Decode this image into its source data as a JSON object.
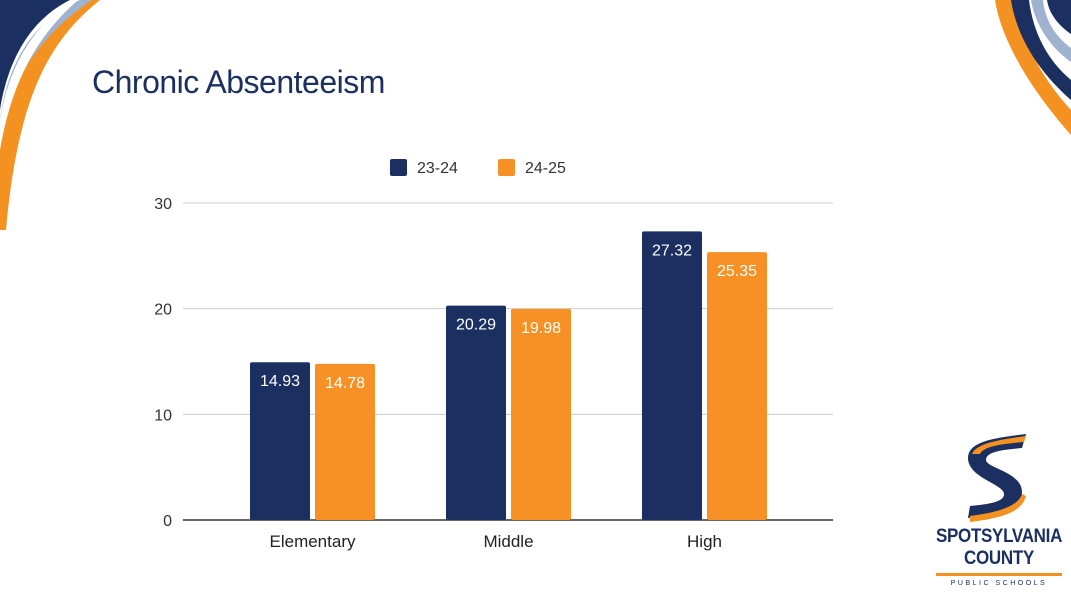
{
  "slide": {
    "title": "Chronic Absenteeism"
  },
  "chart_data": {
    "type": "bar",
    "title": "",
    "xlabel": "",
    "ylabel": "",
    "categories": [
      "Elementary",
      "Middle",
      "High"
    ],
    "series": [
      {
        "name": "23-24",
        "values": [
          14.93,
          20.29,
          27.32
        ],
        "color": "#1b3060"
      },
      {
        "name": "24-25",
        "values": [
          14.78,
          19.98,
          25.35
        ],
        "color": "#f79125"
      }
    ],
    "value_labels": [
      [
        "14.93",
        "20.29",
        "27.32"
      ],
      [
        "14.78",
        "19.98",
        "25.35"
      ]
    ],
    "ylim": [
      0,
      30
    ],
    "yticks": [
      0,
      10,
      20,
      30
    ],
    "ytick_labels": [
      "0",
      "10",
      "20",
      "30"
    ],
    "grid": true,
    "legend_position": "top-center"
  },
  "logo": {
    "line1": "SPOTSYLVANIA",
    "line2": "COUNTY",
    "subtitle": "PUBLIC SCHOOLS",
    "colors": {
      "navy": "#1b3060",
      "orange": "#f39121"
    }
  }
}
